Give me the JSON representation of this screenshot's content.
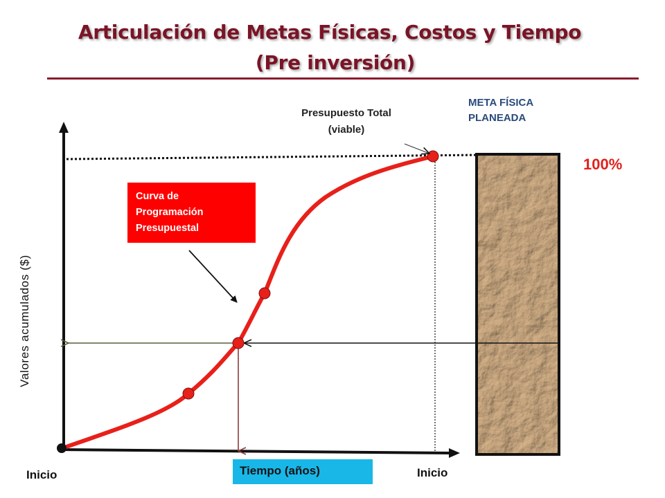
{
  "title": {
    "line1": "Articulación de Metas Físicas, Costos y Tiempo",
    "line2": "(Pre inversión)"
  },
  "labels": {
    "presupuesto_total": "Presupuesto Total (viable)",
    "meta_fisica": "META FÍSICA\nPLANEADA",
    "percent_100": "100%",
    "curva": "Curva de Programación Presupuestal",
    "y_axis": "Valores acumulados ($)",
    "x_axis": "Tiempo (años)",
    "inicio_left": "Inicio",
    "inicio_right": "Inicio"
  },
  "colors": {
    "title": "#7a1426",
    "curve": "#e8201a",
    "curva_box": "#ff0000",
    "tiempo_box": "#19b7e8",
    "meta_text": "#2a4b7a",
    "percent_text": "#e0201c",
    "paper_texture": "#b89470"
  }
}
